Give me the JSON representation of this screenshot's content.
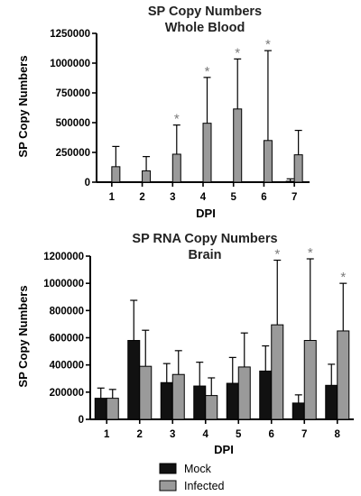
{
  "colors": {
    "mock": "#111111",
    "infected": "#9a9a9a",
    "axis": "#000000",
    "star": "#7a7a7a"
  },
  "legend": {
    "mock_label": "Mock",
    "infected_label": "Infected"
  },
  "chart_data": [
    {
      "type": "bar",
      "title": "SP Copy Numbers",
      "subtitle": "Whole Blood",
      "xlabel": "DPI",
      "ylabel": "SP Copy Numbers",
      "ylim": [
        0,
        1250000
      ],
      "yticks": [
        "0",
        "250000",
        "500000",
        "750000",
        "1000000",
        "1250000"
      ],
      "categories": [
        "1",
        "2",
        "3",
        "4",
        "5",
        "6",
        "7"
      ],
      "series": [
        {
          "name": "Mock",
          "values": [
            0,
            0,
            0,
            0,
            0,
            0,
            8000
          ],
          "errors": [
            0,
            0,
            0,
            0,
            0,
            0,
            20000
          ]
        },
        {
          "name": "Infected",
          "values": [
            130000,
            95000,
            235000,
            495000,
            615000,
            350000,
            230000
          ],
          "errors": [
            170000,
            120000,
            245000,
            385000,
            420000,
            755000,
            205000
          ]
        }
      ],
      "significant": [
        "3",
        "4",
        "5",
        "6"
      ],
      "significance_marker": "*"
    },
    {
      "type": "bar",
      "title": "SP RNA Copy Numbers",
      "subtitle": "Brain",
      "xlabel": "DPI",
      "ylabel": "SP Copy Numbers",
      "ylim": [
        0,
        1200000
      ],
      "yticks": [
        "0",
        "200000",
        "400000",
        "600000",
        "800000",
        "1000000",
        "1200000"
      ],
      "categories": [
        "1",
        "2",
        "3",
        "4",
        "5",
        "6",
        "7",
        "8"
      ],
      "series": [
        {
          "name": "Mock",
          "values": [
            155000,
            580000,
            270000,
            245000,
            265000,
            355000,
            120000,
            250000
          ],
          "errors": [
            75000,
            295000,
            140000,
            175000,
            190000,
            185000,
            60000,
            155000
          ]
        },
        {
          "name": "Infected",
          "values": [
            155000,
            390000,
            330000,
            175000,
            385000,
            695000,
            580000,
            650000
          ],
          "errors": [
            65000,
            265000,
            175000,
            130000,
            250000,
            475000,
            600000,
            350000
          ]
        }
      ],
      "significant": [
        "6",
        "7",
        "8"
      ],
      "significance_marker": "*"
    }
  ]
}
